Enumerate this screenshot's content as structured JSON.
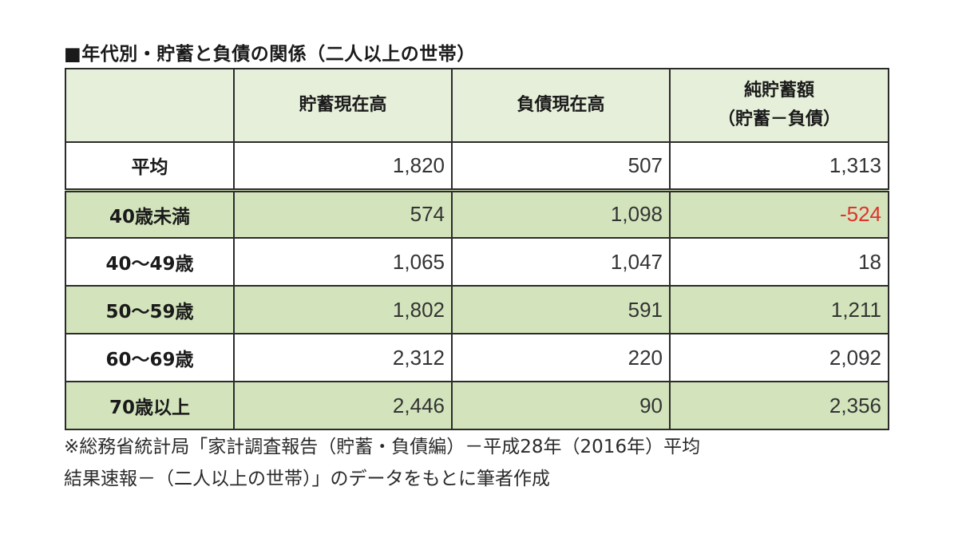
{
  "title": "■年代別・貯蓄と負債の関係（二人以上の世帯）",
  "table": {
    "headers": {
      "blank": "",
      "savings": "貯蓄現在高",
      "debt": "負債現在高",
      "net_line1": "純貯蓄額",
      "net_line2": "（貯蓄－負債）"
    },
    "rows": [
      {
        "label": "平均",
        "savings": "1,820",
        "debt": "507",
        "net": "1,313"
      },
      {
        "label": "40歳未満",
        "savings": "574",
        "debt": "1,098",
        "net": "-524"
      },
      {
        "label": "40～49歳",
        "savings": "1,065",
        "debt": "1,047",
        "net": "18"
      },
      {
        "label": "50～59歳",
        "savings": "1,802",
        "debt": "591",
        "net": "1,211"
      },
      {
        "label": "60～69歳",
        "savings": "2,312",
        "debt": "220",
        "net": "2,092"
      },
      {
        "label": "70歳以上",
        "savings": "2,446",
        "debt": "90",
        "net": "2,356"
      }
    ]
  },
  "note": {
    "line1": "※総務省統計局「家計調査報告（貯蓄・負債編）－平成28年（2016年）平均",
    "line2": "結果速報－（二人以上の世帯）」のデータをもとに筆者作成"
  },
  "colors": {
    "header_bg": "#e6efd9",
    "green_row_bg": "#d3e4bc",
    "negative_text": "#e0312b",
    "border": "#2b2b2b"
  }
}
